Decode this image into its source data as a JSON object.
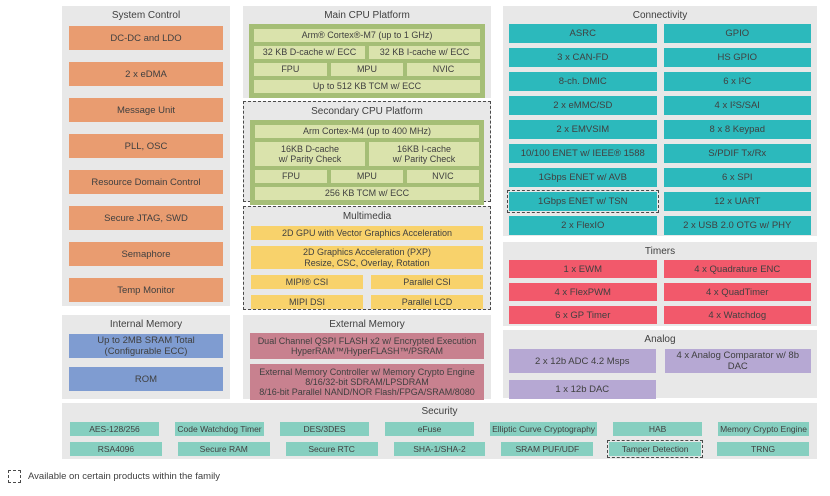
{
  "colors": {
    "panel": "#E8E8E8",
    "orange": "#E99C70",
    "blue": "#7F9CD1",
    "green": "#A5BE76",
    "lightgreen": "#DAE3AC",
    "yellow": "#F8D26B",
    "pink": "#C8818F",
    "teal": "#2CB9BC",
    "lightteal": "#86CFC0",
    "red": "#F2596B",
    "purple": "#B6A8D3",
    "text": "#404040",
    "dash": "#4a4a4a"
  },
  "panels": {
    "system_control": {
      "title": "System Control",
      "items": [
        "DC-DC and LDO",
        "2 x eDMA",
        "Message Unit",
        "PLL, OSC",
        "Resource Domain Control",
        "Secure JTAG, SWD",
        "Semaphore",
        "Temp Monitor"
      ]
    },
    "internal_memory": {
      "title": "Internal Memory",
      "items": [
        {
          "lines": [
            "Up to 2MB SRAM Total",
            "(Configurable ECC)"
          ]
        },
        "ROM"
      ]
    },
    "main_cpu": {
      "title": "Main CPU Platform",
      "items": [
        {
          "label": "Arm® Cortex®-M7 (up to 1 GHz)",
          "w": "full"
        },
        {
          "label": "32 KB D-cache w/ ECC",
          "w": "half"
        },
        {
          "label": "32 KB I-cache w/ ECC",
          "w": "half"
        },
        {
          "label": "FPU",
          "w": "third"
        },
        {
          "label": "MPU",
          "w": "third"
        },
        {
          "label": "NVIC",
          "w": "third"
        },
        {
          "label": "Up to 512 KB TCM w/ ECC",
          "w": "full"
        }
      ]
    },
    "secondary_cpu": {
      "title": "Secondary CPU Platform",
      "dashed": true,
      "items": [
        {
          "label": "Arm Cortex-M4 (up to 400 MHz)",
          "w": "full"
        },
        {
          "lines": [
            "16KB D-cache",
            "w/ Parity Check"
          ],
          "w": "half"
        },
        {
          "lines": [
            "16KB I-cache",
            "w/ Parity Check"
          ],
          "w": "half"
        },
        {
          "label": "FPU",
          "w": "third"
        },
        {
          "label": "MPU",
          "w": "third"
        },
        {
          "label": "NVIC",
          "w": "third"
        },
        {
          "label": "256 KB TCM w/ ECC",
          "w": "full"
        }
      ]
    },
    "multimedia": {
      "title": "Multimedia",
      "dashed": true,
      "items": [
        {
          "label": "2D GPU with Vector Graphics Acceleration",
          "w": "full"
        },
        {
          "lines": [
            "2D Graphics Acceleration (PXP)",
            "Resize, CSC, Overlay, Rotation"
          ],
          "w": "full"
        },
        {
          "label": "MIPI® CSI",
          "w": "half"
        },
        {
          "label": "Parallel CSI",
          "w": "half"
        },
        {
          "label": "MIPI DSI",
          "w": "half"
        },
        {
          "label": "Parallel LCD",
          "w": "half"
        }
      ]
    },
    "external_memory": {
      "title": "External Memory",
      "items": [
        {
          "lines": [
            "Dual Channel QSPI FLASH x2 w/ Encrypted Execution",
            "HyperRAM™/HyperFLASH™/PSRAM"
          ]
        },
        {
          "lines": [
            "External Memory Controller w/ Memory Crypto Engine",
            "8/16/32-bit SDRAM/LPSDRAM",
            "8/16-bit Parallel NAND/NOR Flash/FPGA/SRAM/8080"
          ]
        }
      ]
    },
    "connectivity": {
      "title": "Connectivity",
      "col1": [
        "ASRC",
        "3 x CAN-FD",
        "8-ch. DMIC",
        "2 x eMMC/SD",
        "2 x EMVSIM",
        "10/100 ENET w/ IEEE® 1588",
        "1Gbps ENET w/ AVB",
        {
          "label": "1Gbps ENET w/ TSN",
          "dashed": true
        },
        "2 x FlexIO"
      ],
      "col2": [
        "GPIO",
        "HS GPIO",
        "6 x I²C",
        "4 x I²S/SAI",
        "8 x 8 Keypad",
        "S/PDIF Tx/Rx",
        "6 x SPI",
        "12 x UART",
        "2 x USB 2.0 OTG w/ PHY"
      ]
    },
    "timers": {
      "title": "Timers",
      "col1": [
        "1 x EWM",
        "4 x FlexPWM",
        "6 x GP Timer"
      ],
      "col2": [
        "4 x Quadrature ENC",
        "4 x QuadTimer",
        "4 x Watchdog"
      ]
    },
    "analog": {
      "title": "Analog",
      "items": [
        {
          "label": "2 x 12b ADC 4.2 Msps",
          "w": "half"
        },
        {
          "label": "4 x Analog Comparator w/ 8b DAC",
          "w": "half"
        },
        {
          "label": "1 x 12b DAC",
          "w": "half"
        }
      ]
    },
    "security": {
      "title": "Security",
      "row1": [
        "AES-128/256",
        "Code Watchdog Timer",
        "DES/3DES",
        "eFuse",
        "Elliptic Curve Cryptography",
        "HAB",
        "Memory Crypto Engine"
      ],
      "row2": [
        "RSA4096",
        "Secure RAM",
        "Secure RTC",
        "SHA-1/SHA-2",
        "SRAM PUF/UDF",
        {
          "label": "Tamper Detection",
          "dashed": true
        },
        "TRNG"
      ]
    }
  },
  "legend": {
    "icon": "dashed-box",
    "text": "Available on certain products within the family"
  }
}
